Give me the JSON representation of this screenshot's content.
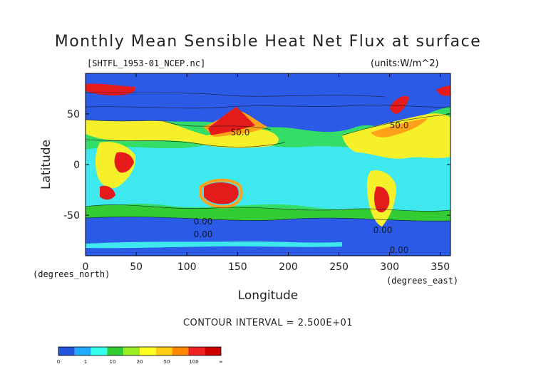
{
  "header": {
    "title": "Monthly Mean Sensible Heat Net Flux at surface",
    "filename": "[SHTFL_1953-01_NCEP.nc]",
    "units": "(units:W/m^2)"
  },
  "footer": {
    "contour_interval": "CONTOUR INTERVAL = 2.500E+01"
  },
  "chart_data": {
    "type": "heatmap",
    "title": "Monthly Mean Sensible Heat Net Flux at surface",
    "xlabel": "Longitude",
    "ylabel": "Latitude",
    "x_unit_note": "(degrees_east)",
    "y_unit_note": "(degrees_north)",
    "xlim": [
      0,
      360
    ],
    "ylim": [
      -90,
      90
    ],
    "x_ticks": [
      0,
      50,
      100,
      150,
      200,
      250,
      300,
      350
    ],
    "y_ticks": [
      -50,
      0,
      50
    ],
    "contour_labels": [
      "50.0",
      "50.0",
      "0.00",
      "0.00",
      "0.00",
      "0.00"
    ],
    "colorbar": {
      "tick_labels": [
        "0",
        "1",
        "10",
        "20",
        "50",
        "100",
        "∞"
      ],
      "colors": [
        "#2255dd",
        "#22aaff",
        "#33ffee",
        "#33cc33",
        "#99ee22",
        "#ffff22",
        "#ffcc11",
        "#ff8800",
        "#ee2222",
        "#cc0000"
      ]
    }
  }
}
